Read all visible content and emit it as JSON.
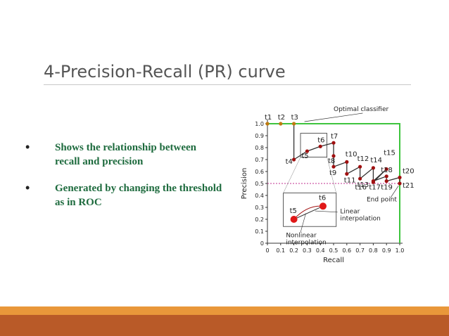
{
  "slide": {
    "title": "4-Precision-Recall (PR) curve",
    "bullets": [
      "Shows the relationship between recall and precision",
      "Generated by changing the threshold as in ROC"
    ]
  },
  "colors": {
    "text_green": "#1e6b3e",
    "footer_orange": "#e9973a",
    "footer_rust": "#b95a28",
    "optimal_green": "#3ec43e",
    "curve_red": "#a01010"
  },
  "chart_data": {
    "type": "line",
    "title": "",
    "xlabel": "Recall",
    "ylabel": "Precision",
    "xlim": [
      0,
      1
    ],
    "ylim": [
      0,
      1
    ],
    "x_ticks": [
      "0",
      "0.1",
      "0.2",
      "0.3",
      "0.4",
      "0.5",
      "0.6",
      "0.7",
      "0.8",
      "0.9",
      "1.0"
    ],
    "y_ticks": [
      "0",
      "0.1",
      "0.2",
      "0.3",
      "0.4",
      "0.5",
      "0.6",
      "0.7",
      "0.8",
      "0.9",
      "1.0"
    ],
    "series": [
      {
        "points": [
          {
            "label": "t1",
            "x": 0.0,
            "y": 1.0
          },
          {
            "label": "t2",
            "x": 0.1,
            "y": 1.0
          },
          {
            "label": "t3",
            "x": 0.2,
            "y": 1.0
          },
          {
            "label": "t4",
            "x": 0.2,
            "y": 0.7
          },
          {
            "label": "t5",
            "x": 0.3,
            "y": 0.77
          },
          {
            "label": "t6",
            "x": 0.4,
            "y": 0.81
          },
          {
            "label": "t7",
            "x": 0.5,
            "y": 0.84
          },
          {
            "label": "t8",
            "x": 0.5,
            "y": 0.73
          },
          {
            "label": "t9",
            "x": 0.5,
            "y": 0.64
          },
          {
            "label": "t10",
            "x": 0.6,
            "y": 0.68
          },
          {
            "label": "t11",
            "x": 0.6,
            "y": 0.58
          },
          {
            "label": "t12",
            "x": 0.7,
            "y": 0.64
          },
          {
            "label": "t13",
            "x": 0.7,
            "y": 0.54
          },
          {
            "label": "t14",
            "x": 0.8,
            "y": 0.63
          },
          {
            "label": "t16",
            "x": 0.8,
            "y": 0.51
          },
          {
            "label": "t15",
            "x": 0.9,
            "y": 0.62
          },
          {
            "label": "t17",
            "x": 0.8,
            "y": 0.52
          },
          {
            "label": "t18",
            "x": 0.9,
            "y": 0.56
          },
          {
            "label": "t19",
            "x": 0.9,
            "y": 0.52
          },
          {
            "label": "t20",
            "x": 1.0,
            "y": 0.55
          },
          {
            "label": "t21",
            "x": 1.0,
            "y": 0.5
          }
        ]
      }
    ],
    "optimal_classifier_label": "Optimal classifier",
    "end_point_label": "End point",
    "baseline_y": 0.5,
    "inset": {
      "points": [
        {
          "label": "t5"
        },
        {
          "label": "t6"
        }
      ],
      "linear_label": [
        "Linear",
        "interpolation"
      ],
      "nonlinear_label": [
        "Nonlinear",
        "interpolation"
      ]
    }
  }
}
